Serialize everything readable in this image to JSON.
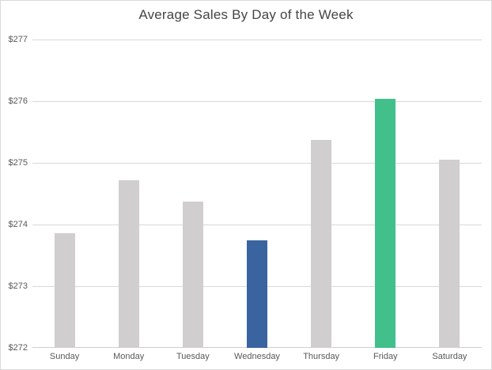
{
  "chart_data": {
    "type": "bar",
    "title": "Average Sales By Day of the Week",
    "categories": [
      "Sunday",
      "Monday",
      "Tuesday",
      "Wednesday",
      "Thursday",
      "Friday",
      "Saturday"
    ],
    "values": [
      273.86,
      274.72,
      274.37,
      273.75,
      275.37,
      276.04,
      275.05
    ],
    "bar_colors": [
      "#D0CECE",
      "#D0CECE",
      "#D0CECE",
      "#3A64A0",
      "#D0CECE",
      "#41C08C",
      "#D0CECE"
    ],
    "ylim": [
      272,
      277
    ],
    "ytick_step": 1,
    "ytick_labels": [
      "$272",
      "$273",
      "$274",
      "$275",
      "$276",
      "$277"
    ],
    "xlabel": "",
    "ylabel": "",
    "grid": true,
    "legend": false,
    "notes": {
      "lowest_bar": "Wednesday",
      "highest_bar": "Friday"
    }
  },
  "colors": {
    "bar_default": "#D0CECE",
    "bar_low_highlight": "#3A64A0",
    "bar_high_highlight": "#41C08C",
    "gridline": "#D9D9D9",
    "axis_line": "#CFCFCF",
    "title_text": "#454545",
    "tick_text": "#595959",
    "chart_border": "#D9D9D9",
    "background": "#FFFFFF"
  }
}
